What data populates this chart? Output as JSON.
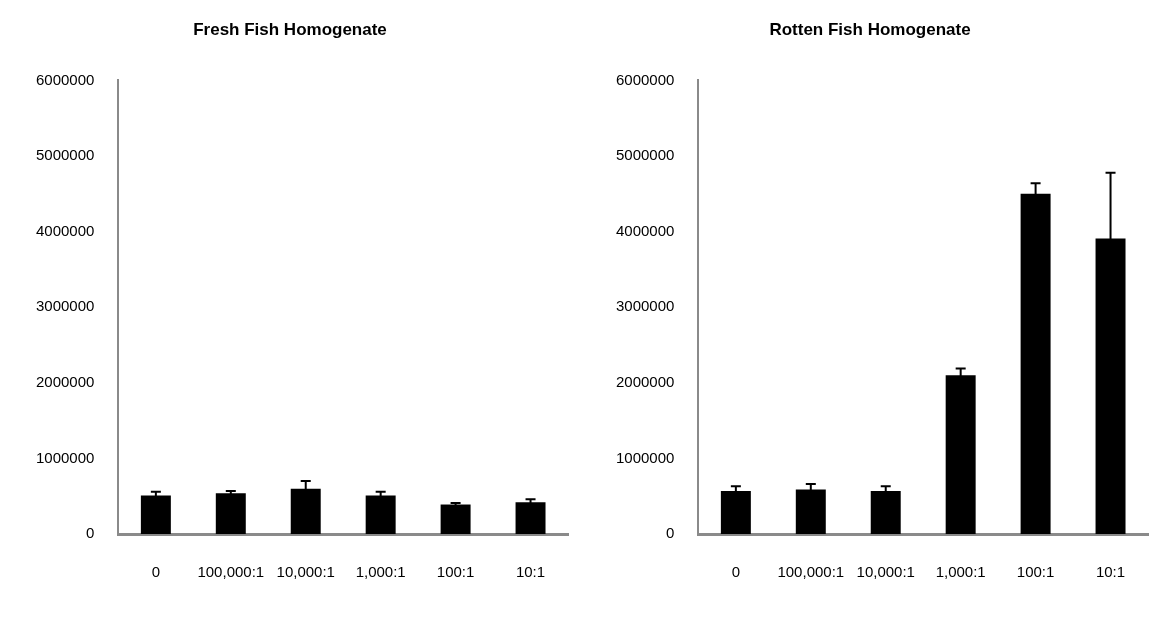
{
  "chart_data": [
    {
      "type": "bar",
      "title": "Fresh Fish Homogenate",
      "categories": [
        "0",
        "100,000:1",
        "10,000:1",
        "1,000:1",
        "100:1",
        "10:1"
      ],
      "series": [
        {
          "color": "#000000",
          "values": [
            510000,
            540000,
            600000,
            510000,
            390000,
            420000
          ],
          "errors": [
            50000,
            30000,
            100000,
            50000,
            20000,
            40000
          ]
        }
      ],
      "ylim": [
        0,
        6000000
      ],
      "yticks": [
        0,
        1000000,
        2000000,
        3000000,
        4000000,
        5000000,
        6000000
      ],
      "grid": false,
      "legend": false
    },
    {
      "type": "bar",
      "title": "Rotten Fish Homogenate",
      "categories": [
        "0",
        "100,000:1",
        "10,000:1",
        "1,000:1",
        "100:1",
        "10:1"
      ],
      "series": [
        {
          "color": "#000000",
          "values": [
            570000,
            590000,
            570000,
            2100000,
            4500000,
            3910000
          ],
          "errors": [
            60000,
            70000,
            60000,
            90000,
            140000,
            870000
          ]
        }
      ],
      "ylim": [
        0,
        6000000
      ],
      "yticks": [
        0,
        1000000,
        2000000,
        3000000,
        4000000,
        5000000,
        6000000
      ],
      "grid": false,
      "legend": false
    }
  ]
}
